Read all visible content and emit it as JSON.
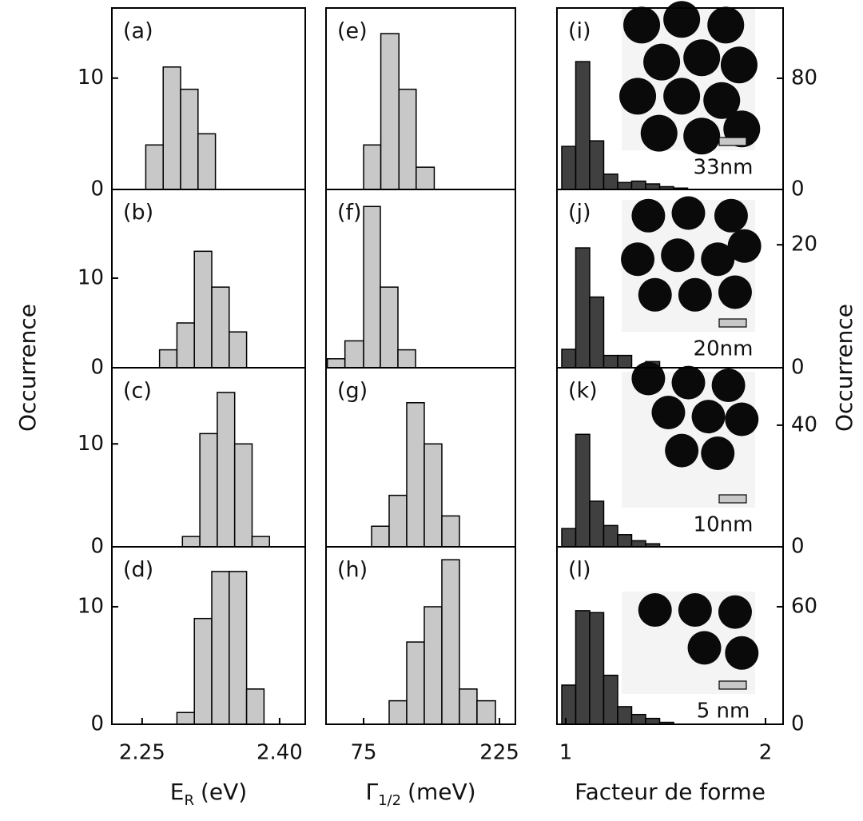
{
  "figure": {
    "ylabel_left": "Occurrence",
    "ylabel_right": "Occurrence"
  },
  "chart_data": [
    {
      "type": "histogram",
      "label": "(a)",
      "color": "#c8c8c8",
      "bins": [
        2.254,
        2.273,
        2.292,
        2.311,
        2.33
      ],
      "values": [
        4,
        11,
        9,
        5
      ],
      "xlim": [
        2.217,
        2.428
      ],
      "ylim": [
        0,
        16.3
      ],
      "yticks": [
        0,
        10
      ]
    },
    {
      "type": "histogram",
      "label": "(b)",
      "color": "#c8c8c8",
      "bins": [
        2.269,
        2.288,
        2.307,
        2.326,
        2.345,
        2.364
      ],
      "values": [
        2,
        5,
        13,
        9,
        4
      ],
      "xlim": [
        2.217,
        2.428
      ],
      "ylim": [
        0,
        19.9
      ],
      "yticks": [
        0,
        10
      ]
    },
    {
      "type": "histogram",
      "label": "(c)",
      "color": "#c8c8c8",
      "bins": [
        2.294,
        2.313,
        2.332,
        2.351,
        2.37,
        2.389
      ],
      "values": [
        1,
        11,
        15,
        10,
        1
      ],
      "xlim": [
        2.217,
        2.428
      ],
      "ylim": [
        0,
        17.4
      ],
      "yticks": [
        0,
        10
      ]
    },
    {
      "type": "histogram",
      "label": "(d)",
      "color": "#c8c8c8",
      "bins": [
        2.288,
        2.307,
        2.326,
        2.345,
        2.364,
        2.383
      ],
      "values": [
        1,
        9,
        13,
        13,
        3
      ],
      "xlim": [
        2.217,
        2.428
      ],
      "ylim": [
        0,
        15.1
      ],
      "yticks": [
        0,
        10
      ],
      "xticks": [
        2.25,
        {
          "value": 2.4,
          "label": "2.40"
        }
      ],
      "xlabel": {
        "text": "E",
        "sub": "R",
        "unit": "(eV)"
      }
    },
    {
      "type": "histogram",
      "label": "(e)",
      "color": "#c8c8c8",
      "bins": [
        75,
        94,
        114,
        133,
        153
      ],
      "values": [
        4,
        14,
        9,
        2
      ],
      "xlim": [
        33.5,
        242.6
      ],
      "ylim": [
        0,
        16.3
      ]
    },
    {
      "type": "histogram",
      "label": "(f)",
      "color": "#c8c8c8",
      "bins": [
        35,
        54.4,
        75,
        93.5,
        112.9,
        132.4
      ],
      "values": [
        1,
        3,
        18,
        9,
        2
      ],
      "xlim": [
        33.5,
        242.6
      ],
      "ylim": [
        0,
        19.9
      ]
    },
    {
      "type": "histogram",
      "label": "(g)",
      "color": "#c8c8c8",
      "bins": [
        83.8,
        103.2,
        122.6,
        142,
        161.4,
        180.8
      ],
      "values": [
        2,
        5,
        14,
        10,
        3
      ],
      "xlim": [
        33.5,
        242.6
      ],
      "ylim": [
        0,
        17.4
      ]
    },
    {
      "type": "histogram",
      "label": "(h)",
      "color": "#c8c8c8",
      "bins": [
        103.2,
        122.6,
        142,
        161.4,
        180.8,
        200.2,
        220.6
      ],
      "values": [
        2,
        7,
        10,
        14,
        3,
        2
      ],
      "xlim": [
        33.5,
        242.6
      ],
      "ylim": [
        0,
        15.1
      ],
      "xticks": [
        75,
        225
      ],
      "xlabel": {
        "text": "Γ",
        "sub": "1/2",
        "unit": "(meV)"
      }
    },
    {
      "type": "histogram",
      "label": "(i)",
      "color": "#404040",
      "bins": [
        0.98,
        1.05,
        1.12,
        1.19,
        1.26,
        1.33,
        1.4,
        1.47,
        1.54,
        1.61
      ],
      "values": [
        31,
        92,
        35,
        11,
        5,
        6,
        4,
        2,
        1
      ],
      "xlim": [
        0.956,
        2.088
      ],
      "ylim": [
        0,
        130.6
      ],
      "yticks": [
        0,
        80
      ],
      "inset_label": "33nm"
    },
    {
      "type": "histogram",
      "label": "(j)",
      "color": "#404040",
      "bins": [
        0.98,
        1.05,
        1.12,
        1.19,
        1.26,
        1.33,
        1.4,
        1.47
      ],
      "values": [
        3,
        19.5,
        11.5,
        2,
        2,
        0,
        1
      ],
      "xlim": [
        0.956,
        2.088
      ],
      "ylim": [
        0,
        29.0
      ],
      "yticks": [
        0,
        20
      ],
      "inset_label": "20nm"
    },
    {
      "type": "histogram",
      "label": "(k)",
      "color": "#404040",
      "bins": [
        0.98,
        1.05,
        1.12,
        1.19,
        1.26,
        1.33,
        1.4,
        1.47
      ],
      "values": [
        6,
        37,
        15,
        7,
        4,
        2,
        1
      ],
      "xlim": [
        0.956,
        2.088
      ],
      "ylim": [
        0,
        58.9
      ],
      "yticks": [
        0,
        40
      ],
      "inset_label": "10nm"
    },
    {
      "type": "histogram",
      "label": "(l)",
      "color": "#404040",
      "bins": [
        0.98,
        1.05,
        1.12,
        1.19,
        1.26,
        1.33,
        1.4,
        1.47,
        1.54
      ],
      "values": [
        20,
        58,
        57,
        25,
        9,
        5,
        3,
        1
      ],
      "xlim": [
        0.956,
        2.088
      ],
      "ylim": [
        0,
        90.6
      ],
      "yticks": [
        0,
        60
      ],
      "xticks": [
        1,
        2
      ],
      "inset_label": "5 nm",
      "xlabel": {
        "text": "Facteur de forme"
      }
    }
  ]
}
